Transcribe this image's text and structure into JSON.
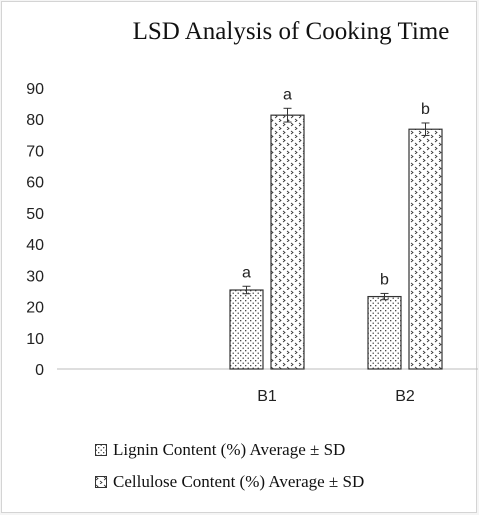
{
  "chart_data": {
    "type": "bar",
    "title": "LSD Analysis of Cooking Time",
    "categories": [
      "B1",
      "B2"
    ],
    "series": [
      {
        "name": "Lignin Content (%) Average ± SD",
        "values": [
          25.3,
          23.2
        ],
        "errors": [
          1.2,
          1.0
        ],
        "significance": [
          "a",
          "b"
        ],
        "pattern": "fine-dots"
      },
      {
        "name": "Cellulose Content (%) Average ± SD",
        "values": [
          81.3,
          76.8
        ],
        "errors": [
          2.2,
          2.0
        ],
        "significance": [
          "a",
          "b"
        ],
        "pattern": "chevron-dots"
      }
    ],
    "ylim": [
      0,
      90
    ],
    "yticks": [
      0,
      10,
      20,
      30,
      40,
      50,
      60,
      70,
      80,
      90
    ],
    "xlabel": "",
    "ylabel": "",
    "legend_position": "bottom",
    "grid": false,
    "colors": {
      "bar_fill": "#ffffff",
      "bar_stroke": "#333333",
      "axis": "#bdbdbd"
    }
  }
}
